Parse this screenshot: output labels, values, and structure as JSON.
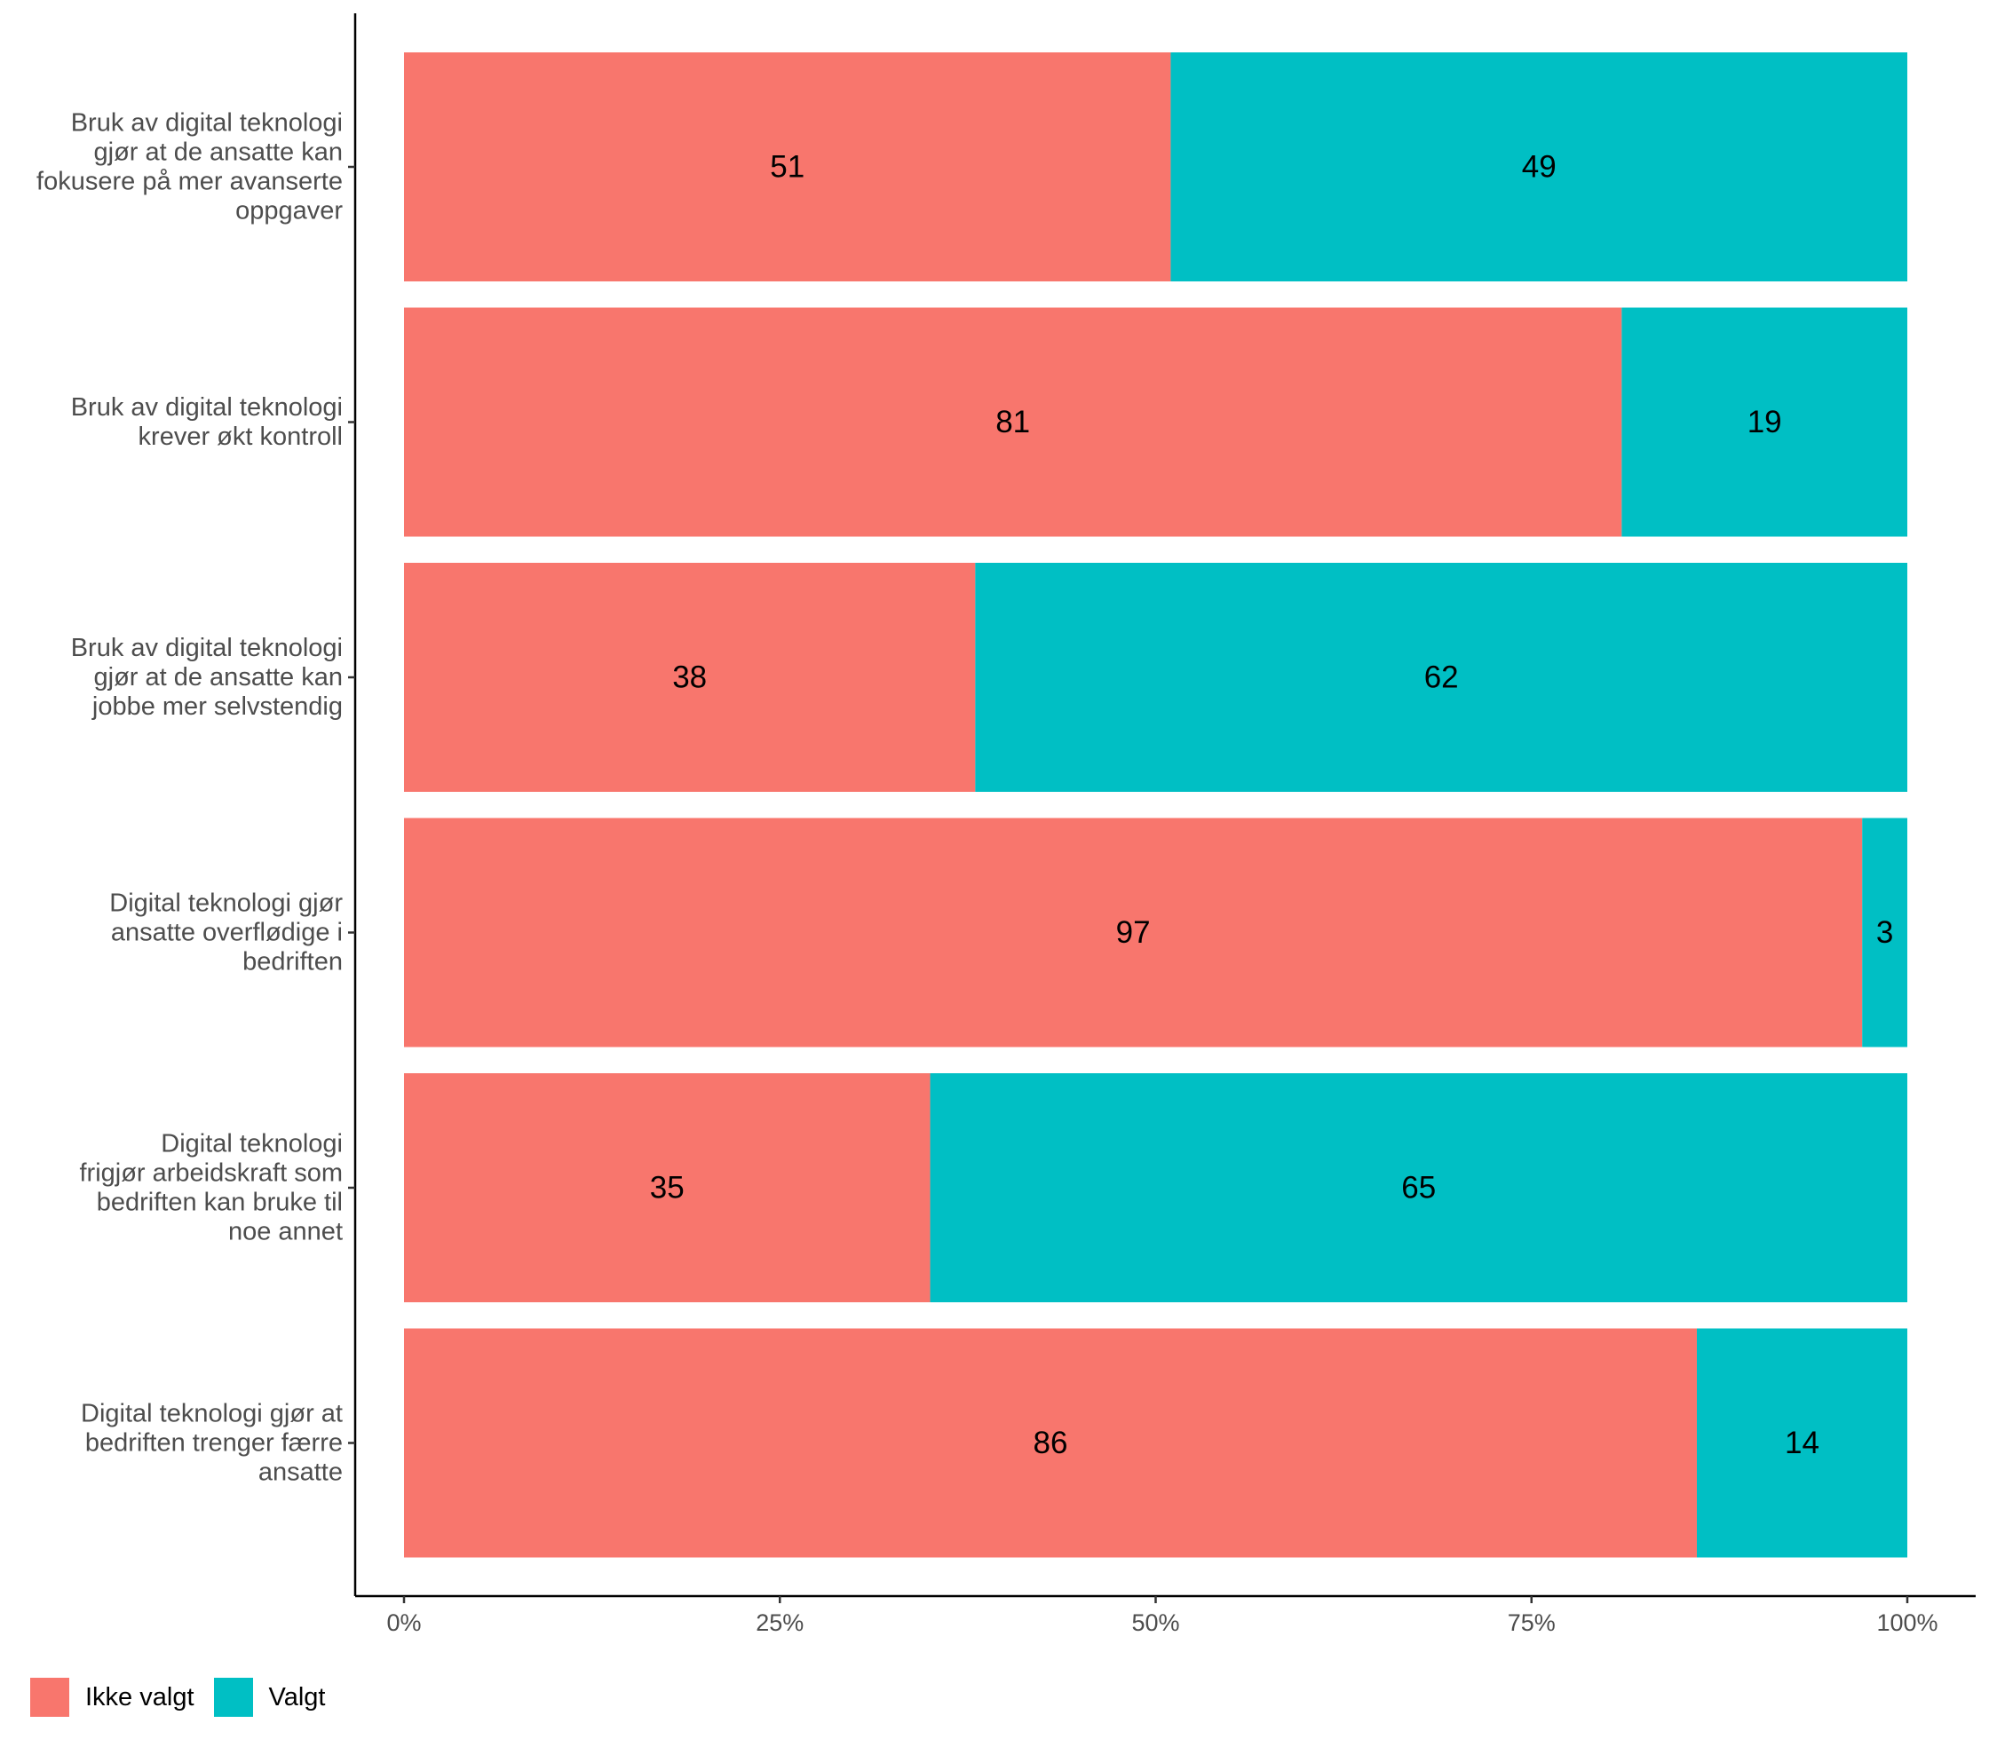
{
  "chart_data": {
    "type": "bar",
    "orientation": "horizontal",
    "stacked": true,
    "normalized": true,
    "categories": [
      "Bruk av digital teknologi gjør at de ansatte kan fokusere på mer avanserte oppgaver",
      "Bruk av digital teknologi krever økt kontroll",
      "Bruk av digital teknologi gjør at de ansatte kan jobbe mer selvstendig",
      "Digital teknologi gjør ansatte overflødige i bedriften",
      "Digital teknologi frigjør arbeidskraft som bedriften kan bruke til noe annet",
      "Digital teknologi gjør at bedriften trenger færre ansatte"
    ],
    "category_lines": [
      [
        "Bruk av digital teknologi",
        "gjør at de ansatte kan",
        "fokusere på mer avanserte",
        "oppgaver"
      ],
      [
        "Bruk av digital teknologi",
        "krever økt kontroll"
      ],
      [
        "Bruk av digital teknologi",
        "gjør at de ansatte kan",
        "jobbe mer selvstendig"
      ],
      [
        "Digital teknologi gjør",
        "ansatte overflødige i",
        "bedriften"
      ],
      [
        "Digital teknologi",
        "frigjør arbeidskraft som",
        "bedriften kan bruke til",
        "noe annet"
      ],
      [
        "Digital teknologi gjør at",
        "bedriften trenger færre",
        "ansatte"
      ]
    ],
    "series": [
      {
        "name": "Ikke valgt",
        "color": "#F8766D",
        "values": [
          51,
          81,
          38,
          97,
          35,
          86
        ]
      },
      {
        "name": "Valgt",
        "color": "#00BFC4",
        "values": [
          49,
          19,
          62,
          3,
          65,
          14
        ]
      }
    ],
    "x_ticks": [
      "0%",
      "25%",
      "50%",
      "75%",
      "100%"
    ],
    "xlim": [
      0,
      100
    ],
    "xlabel": "",
    "ylabel": "",
    "grid": false,
    "legend_position": "bottom-left"
  }
}
